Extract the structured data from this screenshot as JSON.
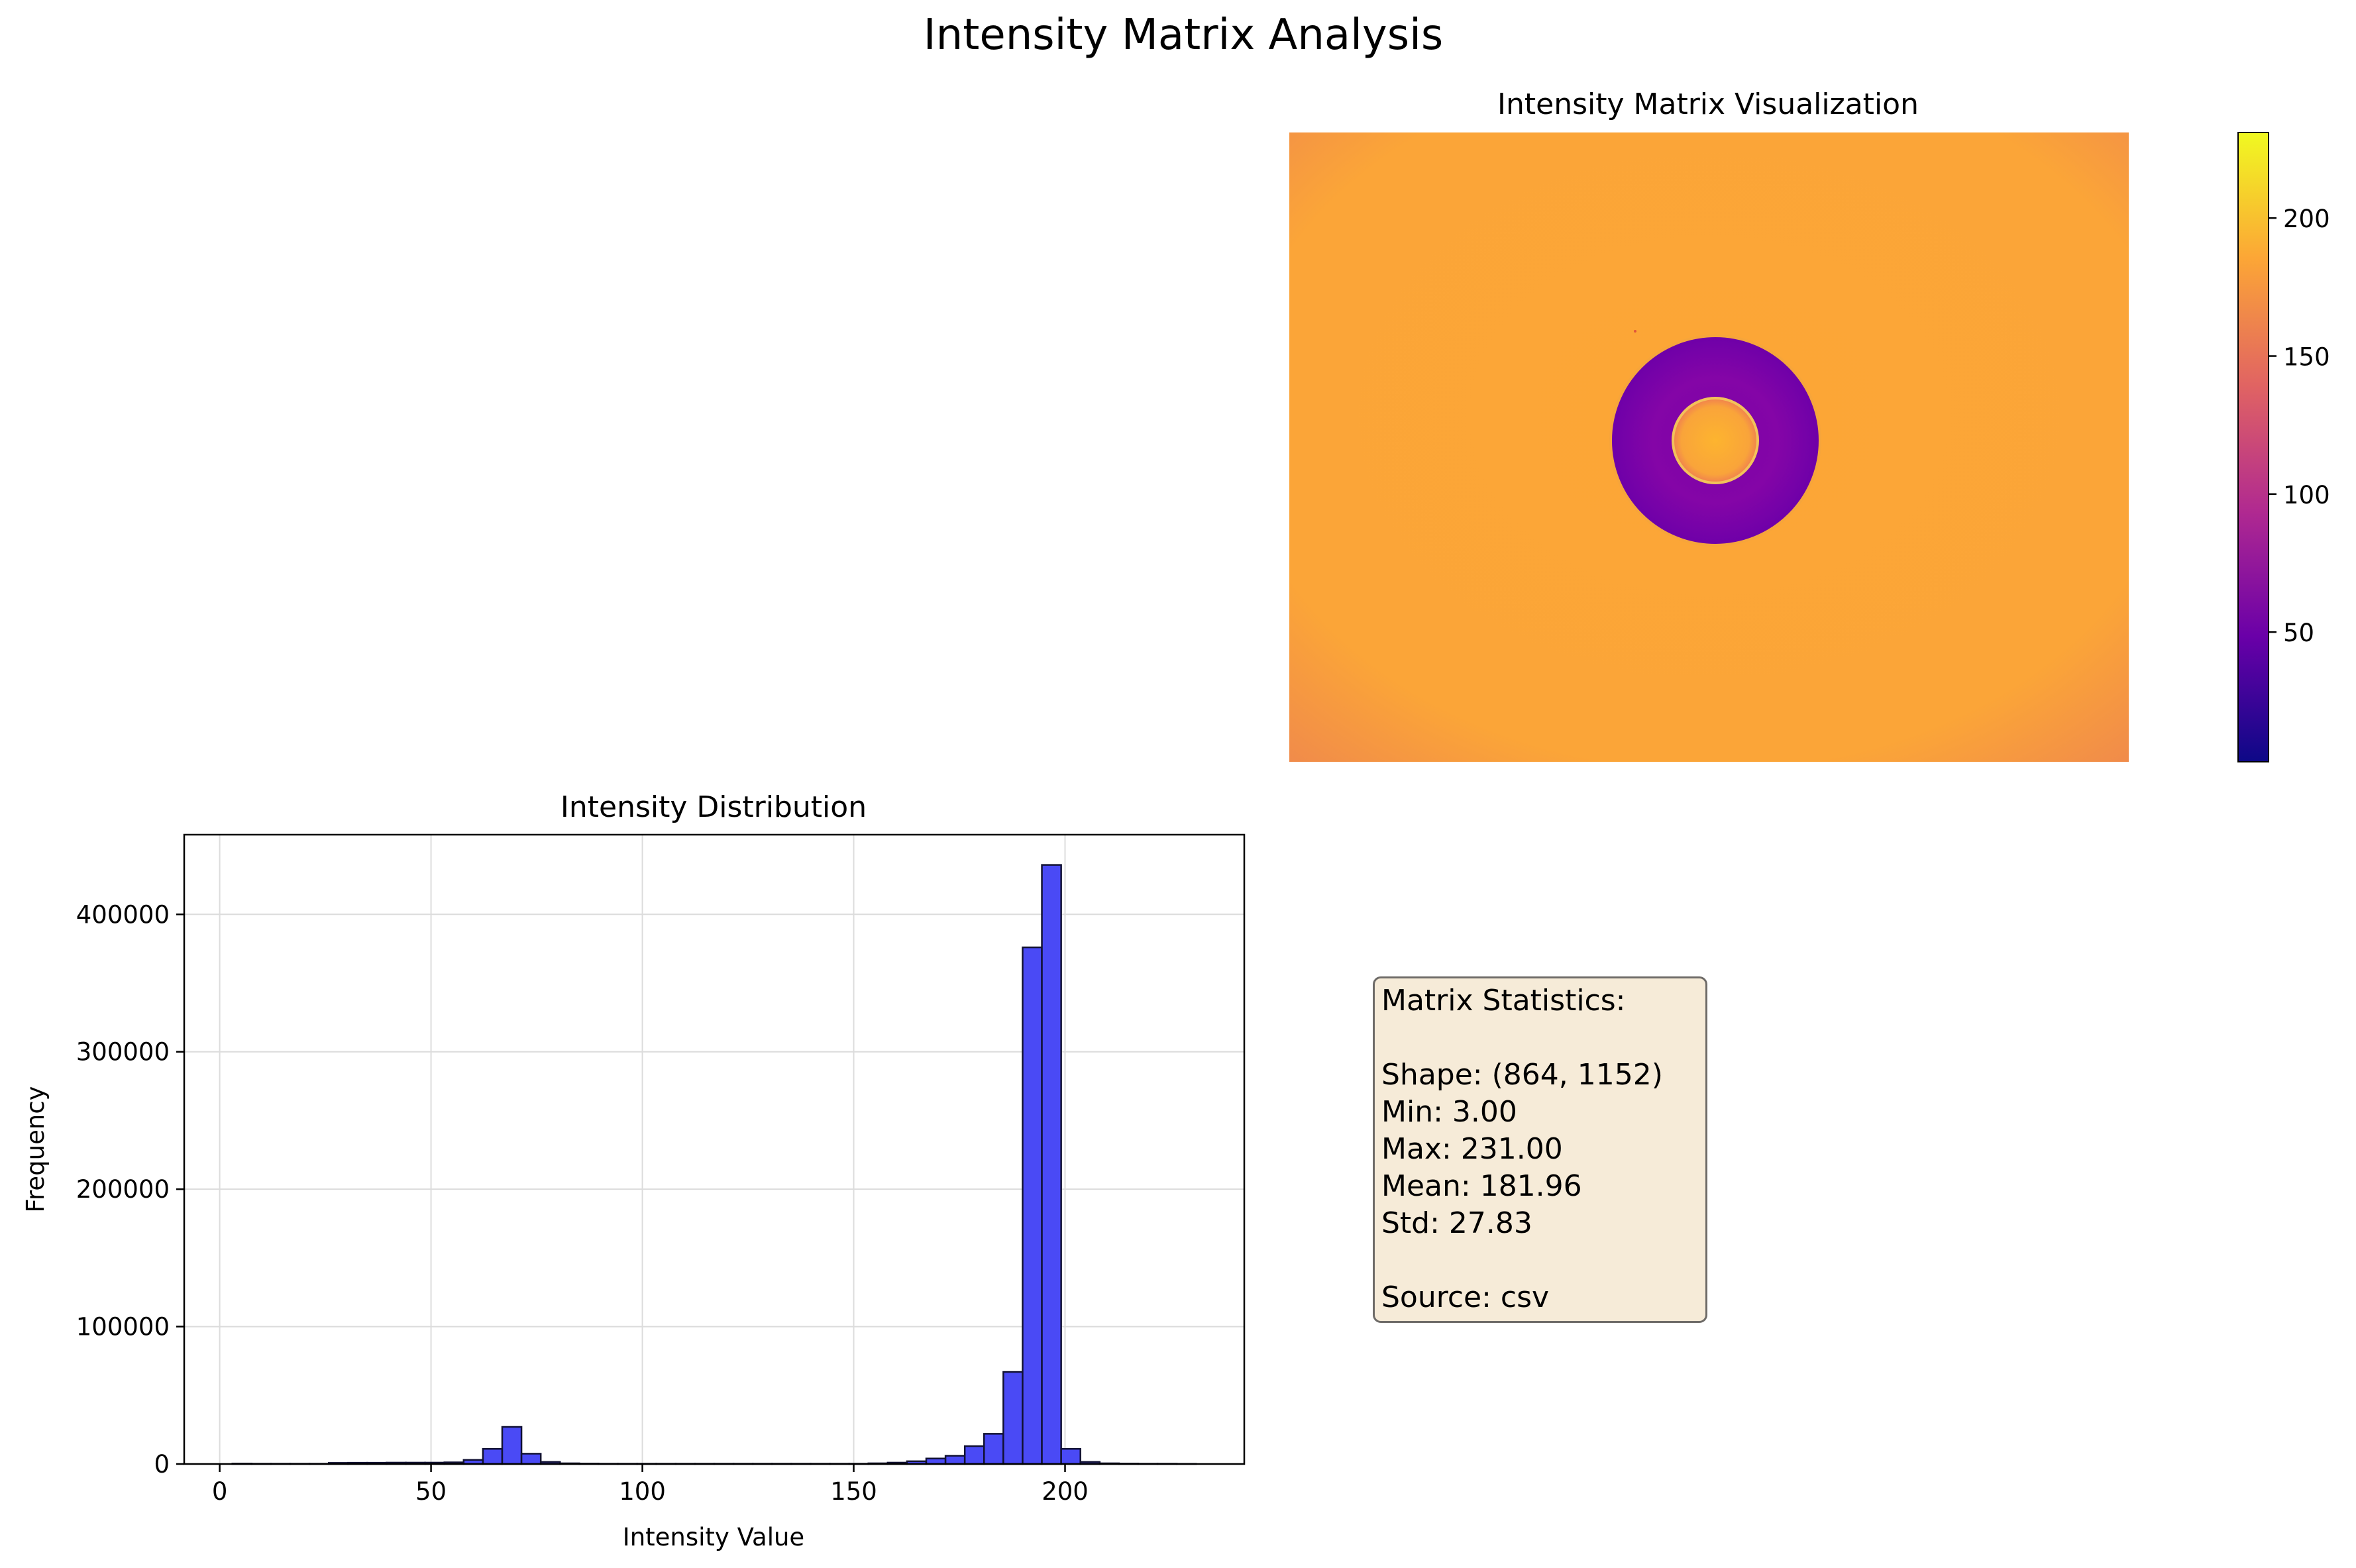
{
  "suptitle": "Intensity Matrix Analysis",
  "heatmap": {
    "title": "Intensity Matrix Visualization",
    "colormap": "plasma",
    "colormap_stops": [
      "#0d0887",
      "#6a00a8",
      "#b12a90",
      "#e16462",
      "#fca636",
      "#f0f921"
    ],
    "colorbar": {
      "min": 3,
      "max": 231,
      "ticks": [
        50,
        100,
        150,
        200
      ]
    },
    "background_value": 185,
    "ring_value": 65,
    "center_value": 190
  },
  "stats": {
    "lines": [
      "Matrix Statistics:",
      "",
      "Shape: (864, 1152)",
      "Min: 3.00",
      "Max: 231.00",
      "Mean: 181.96",
      "Std: 27.83",
      "",
      "Source: csv"
    ]
  },
  "chart_data": [
    {
      "type": "bar",
      "title": "Intensity Distribution",
      "xlabel": "Intensity Value",
      "ylabel": "Frequency",
      "xlim": [
        -8.4,
        242.4
      ],
      "ylim": [
        0,
        458000
      ],
      "xticks": [
        0,
        50,
        100,
        150,
        200
      ],
      "yticks": [
        0,
        100000,
        200000,
        300000,
        400000
      ],
      "grid": true,
      "bar_color": "#4a4af5",
      "edge_color": "#111133",
      "bin_width": 4.56,
      "x": [
        3.0,
        7.56,
        12.12,
        16.68,
        21.24,
        25.8,
        30.36,
        34.92,
        39.48,
        44.04,
        48.6,
        53.16,
        57.72,
        62.28,
        66.84,
        71.4,
        75.96,
        80.52,
        85.08,
        89.64,
        94.2,
        98.76,
        103.32,
        107.88,
        112.44,
        117.0,
        121.56,
        126.12,
        130.68,
        135.24,
        139.8,
        144.36,
        148.92,
        153.48,
        158.04,
        162.6,
        167.16,
        171.72,
        176.28,
        180.84,
        185.4,
        189.96,
        194.52,
        199.08,
        203.64,
        208.2,
        212.76,
        217.32,
        221.88,
        226.44
      ],
      "values": [
        300,
        200,
        200,
        200,
        200,
        800,
        900,
        900,
        1000,
        1000,
        1000,
        1200,
        3000,
        11000,
        27000,
        7500,
        1500,
        500,
        300,
        200,
        200,
        200,
        200,
        200,
        200,
        200,
        200,
        200,
        200,
        200,
        200,
        200,
        200,
        500,
        1000,
        2000,
        4000,
        6000,
        13000,
        22000,
        67000,
        376000,
        436000,
        11000,
        1500,
        500,
        300,
        200,
        200,
        100
      ]
    },
    {
      "type": "heatmap",
      "title": "Intensity Matrix Visualization",
      "shape": [
        864,
        1152
      ],
      "value_range": [
        3,
        231
      ],
      "colorbar_ticks": [
        50,
        100,
        150,
        200
      ]
    }
  ]
}
